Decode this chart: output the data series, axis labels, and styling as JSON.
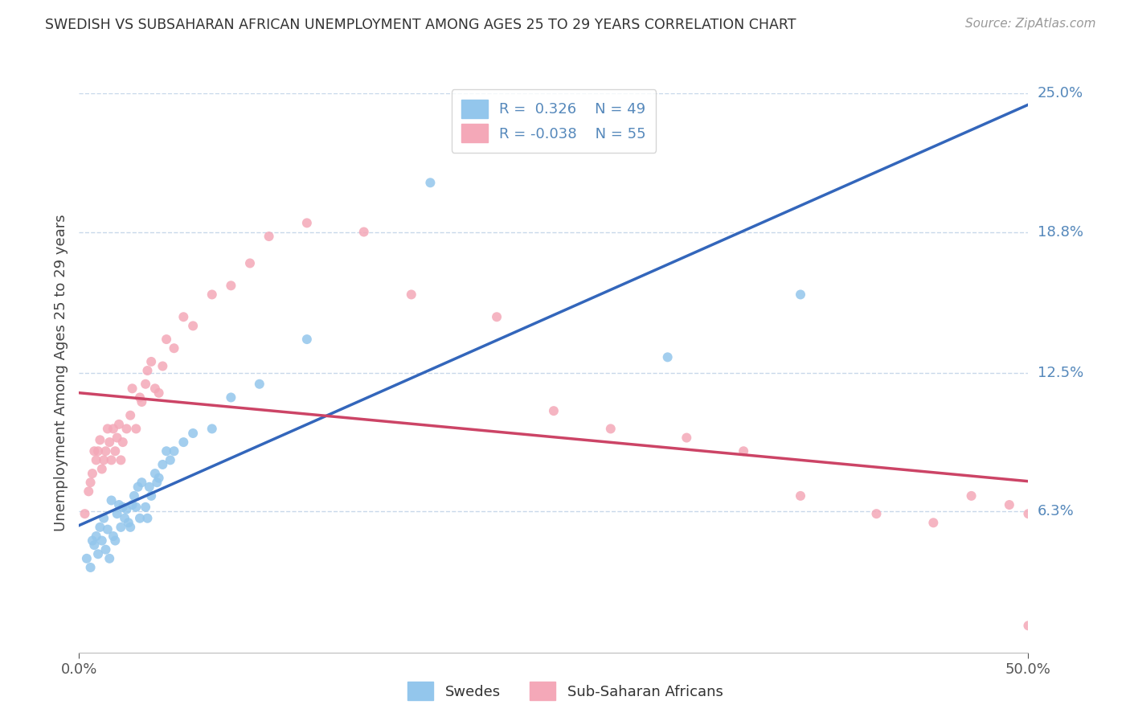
{
  "title": "SWEDISH VS SUBSAHARAN AFRICAN UNEMPLOYMENT AMONG AGES 25 TO 29 YEARS CORRELATION CHART",
  "source": "Source: ZipAtlas.com",
  "ylabel": "Unemployment Among Ages 25 to 29 years",
  "xlim": [
    0.0,
    0.5
  ],
  "ylim": [
    0.0,
    0.25
  ],
  "ytick_labels": [
    "6.3%",
    "12.5%",
    "18.8%",
    "25.0%"
  ],
  "ytick_values": [
    0.063,
    0.125,
    0.188,
    0.25
  ],
  "legend_r1": "0.326",
  "legend_n1": "49",
  "legend_r2": "-0.038",
  "legend_n2": "55",
  "color_blue": "#93C6EC",
  "color_pink": "#F4A8B8",
  "color_blue_line": "#3366BB",
  "color_pink_line": "#CC4466",
  "grid_color": "#C8D8EA",
  "background_color": "#FFFFFF",
  "title_color": "#333333",
  "axis_label_color": "#5588BB",
  "swedes_label": "Swedes",
  "african_label": "Sub-Saharan Africans",
  "swedes_x": [
    0.004,
    0.006,
    0.007,
    0.008,
    0.009,
    0.01,
    0.011,
    0.012,
    0.013,
    0.014,
    0.015,
    0.016,
    0.017,
    0.018,
    0.019,
    0.02,
    0.021,
    0.022,
    0.023,
    0.024,
    0.025,
    0.026,
    0.027,
    0.028,
    0.029,
    0.03,
    0.031,
    0.032,
    0.033,
    0.035,
    0.036,
    0.037,
    0.038,
    0.04,
    0.041,
    0.042,
    0.044,
    0.046,
    0.048,
    0.05,
    0.055,
    0.06,
    0.07,
    0.08,
    0.095,
    0.12,
    0.185,
    0.31,
    0.38
  ],
  "swedes_y": [
    0.042,
    0.038,
    0.05,
    0.048,
    0.052,
    0.044,
    0.056,
    0.05,
    0.06,
    0.046,
    0.055,
    0.042,
    0.068,
    0.052,
    0.05,
    0.062,
    0.066,
    0.056,
    0.065,
    0.06,
    0.064,
    0.058,
    0.056,
    0.066,
    0.07,
    0.065,
    0.074,
    0.06,
    0.076,
    0.065,
    0.06,
    0.074,
    0.07,
    0.08,
    0.076,
    0.078,
    0.084,
    0.09,
    0.086,
    0.09,
    0.094,
    0.098,
    0.1,
    0.114,
    0.12,
    0.14,
    0.21,
    0.132,
    0.16
  ],
  "african_x": [
    0.003,
    0.005,
    0.006,
    0.007,
    0.008,
    0.009,
    0.01,
    0.011,
    0.012,
    0.013,
    0.014,
    0.015,
    0.016,
    0.017,
    0.018,
    0.019,
    0.02,
    0.021,
    0.022,
    0.023,
    0.025,
    0.027,
    0.028,
    0.03,
    0.032,
    0.033,
    0.035,
    0.036,
    0.038,
    0.04,
    0.042,
    0.044,
    0.046,
    0.05,
    0.055,
    0.06,
    0.07,
    0.08,
    0.09,
    0.1,
    0.12,
    0.15,
    0.175,
    0.22,
    0.25,
    0.28,
    0.32,
    0.35,
    0.38,
    0.42,
    0.45,
    0.47,
    0.49,
    0.5,
    0.5
  ],
  "african_y": [
    0.062,
    0.072,
    0.076,
    0.08,
    0.09,
    0.086,
    0.09,
    0.095,
    0.082,
    0.086,
    0.09,
    0.1,
    0.094,
    0.086,
    0.1,
    0.09,
    0.096,
    0.102,
    0.086,
    0.094,
    0.1,
    0.106,
    0.118,
    0.1,
    0.114,
    0.112,
    0.12,
    0.126,
    0.13,
    0.118,
    0.116,
    0.128,
    0.14,
    0.136,
    0.15,
    0.146,
    0.16,
    0.164,
    0.174,
    0.186,
    0.192,
    0.188,
    0.16,
    0.15,
    0.108,
    0.1,
    0.096,
    0.09,
    0.07,
    0.062,
    0.058,
    0.07,
    0.066,
    0.062,
    0.012
  ]
}
